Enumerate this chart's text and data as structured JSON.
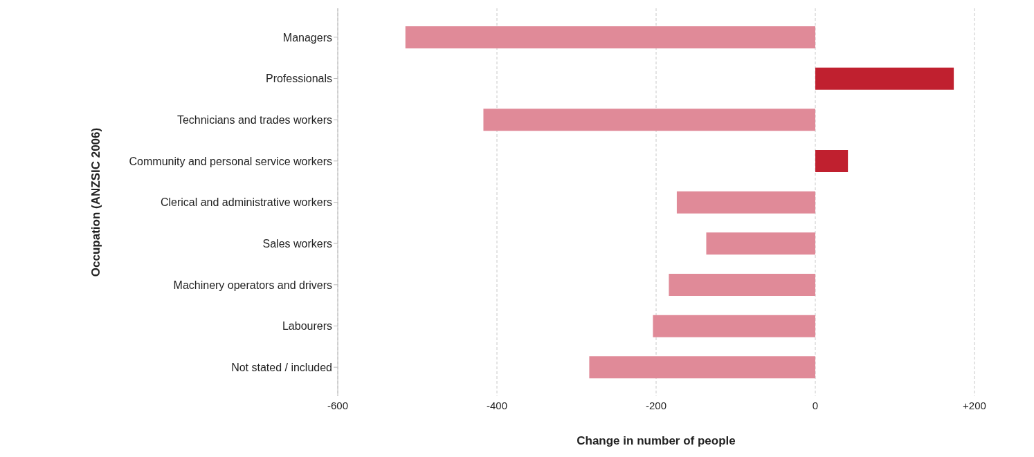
{
  "chart_data": {
    "type": "bar",
    "orientation": "horizontal",
    "xlabel": "Change in number of people",
    "ylabel": "Occupation (ANZSIC 2006)",
    "categories": [
      "Managers",
      "Professionals",
      "Technicians and trades workers",
      "Community and personal service workers",
      "Clerical and administrative workers",
      "Sales workers",
      "Machinery operators and drivers",
      "Labourers",
      "Not stated / included"
    ],
    "values": [
      -515,
      174,
      -417,
      41,
      -174,
      -137,
      -184,
      -204,
      -284
    ],
    "colors": [
      "#e08a98",
      "#c0202f",
      "#e08a98",
      "#c0202f",
      "#e08a98",
      "#e08a98",
      "#e08a98",
      "#e08a98",
      "#e08a98"
    ],
    "xlim": [
      -600,
      200
    ],
    "xticks": [
      -600,
      -400,
      -200,
      0,
      {
        "value": 200,
        "label": "+200"
      }
    ],
    "grid": "x",
    "legend": false
  }
}
